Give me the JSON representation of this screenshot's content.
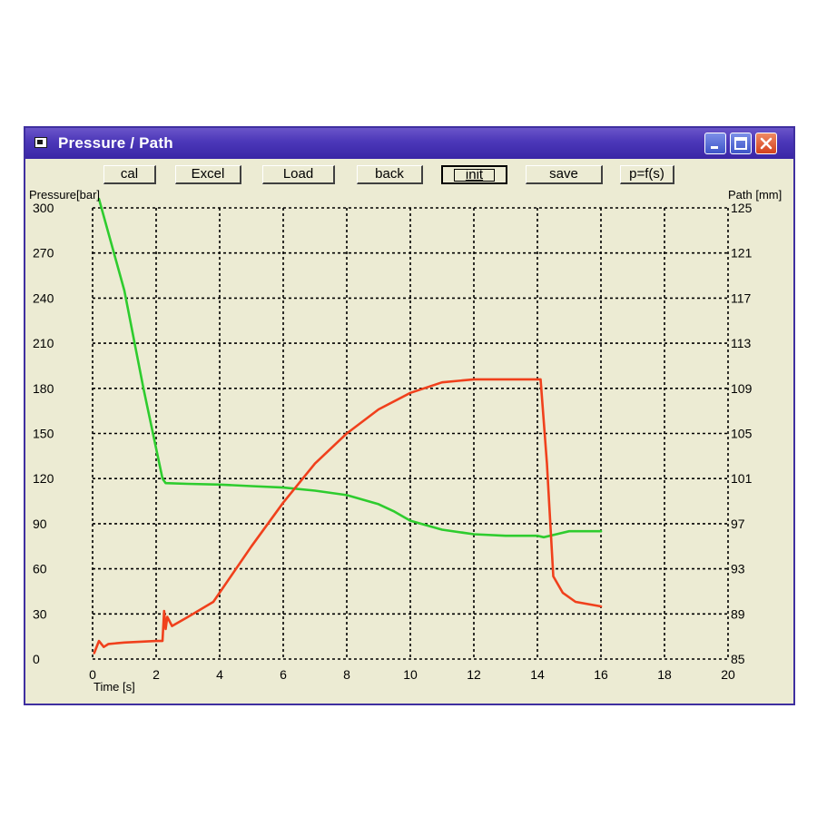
{
  "window": {
    "title": "Pressure / Path",
    "controls": {
      "minimize": "minimize",
      "maximize": "maximize",
      "close": "close"
    }
  },
  "toolbar": {
    "buttons": [
      {
        "label": "cal"
      },
      {
        "label": "Excel"
      },
      {
        "label": "Load"
      },
      {
        "label": "back"
      },
      {
        "label": "init",
        "pressed": true
      },
      {
        "label": "save"
      },
      {
        "label": "p=f(s)"
      }
    ]
  },
  "colors": {
    "pressure": "#2ecc2e",
    "path": "#f0401c",
    "grid": "#000000",
    "background": "#ecebd3"
  },
  "icons": [
    "app-window-icon",
    "minimize-icon",
    "maximize-icon",
    "close-icon"
  ],
  "chart_data": {
    "type": "line",
    "xlabel": "Time [s]",
    "ylabel_left": "Pressure[bar]",
    "ylabel_right": "Path [mm]",
    "xlim": [
      0,
      20
    ],
    "ylim_left": [
      0,
      300
    ],
    "ylim_right": [
      85,
      125
    ],
    "x_ticks": [
      "0",
      "2",
      "4",
      "6",
      "8",
      "10",
      "12",
      "14",
      "16",
      "18",
      "20"
    ],
    "y_ticks_left": [
      "0",
      "30",
      "60",
      "90",
      "120",
      "150",
      "180",
      "210",
      "240",
      "270",
      "300"
    ],
    "y_ticks_right": [
      "85",
      "89",
      "93",
      "97",
      "101",
      "105",
      "109",
      "113",
      "117",
      "121",
      "125"
    ],
    "grid": true,
    "series": [
      {
        "color": "#2ecc2e",
        "axis": "left",
        "x": [
          0.2,
          1.0,
          1.6,
          2.2,
          2.3,
          3.0,
          4.0,
          5.0,
          6.0,
          7.0,
          8.0,
          9.0,
          9.5,
          10.0,
          11.0,
          12.0,
          13.0,
          14.0,
          14.2,
          14.6,
          15.0,
          16.0
        ],
        "y": [
          306,
          245,
          180,
          120,
          117,
          116.5,
          116,
          115,
          114,
          112,
          109,
          103,
          98,
          92,
          86,
          83,
          82,
          82,
          81,
          83,
          85,
          85
        ]
      },
      {
        "color": "#f0401c",
        "axis": "left",
        "x": [
          0.05,
          0.2,
          0.35,
          0.5,
          1.0,
          2.0,
          2.2,
          2.25,
          2.3,
          2.35,
          2.5,
          3.0,
          3.8,
          5.0,
          6.0,
          7.0,
          8.0,
          9.0,
          10.0,
          11.0,
          12.0,
          13.0,
          14.1,
          14.3,
          14.5,
          14.8,
          15.2,
          16.0
        ],
        "y": [
          4,
          12,
          8,
          10,
          11,
          12,
          12,
          32,
          20,
          28,
          22,
          28,
          38,
          75,
          104,
          130,
          150,
          166,
          177,
          184,
          186,
          186,
          186,
          130,
          55,
          44,
          38,
          35
        ]
      }
    ]
  }
}
